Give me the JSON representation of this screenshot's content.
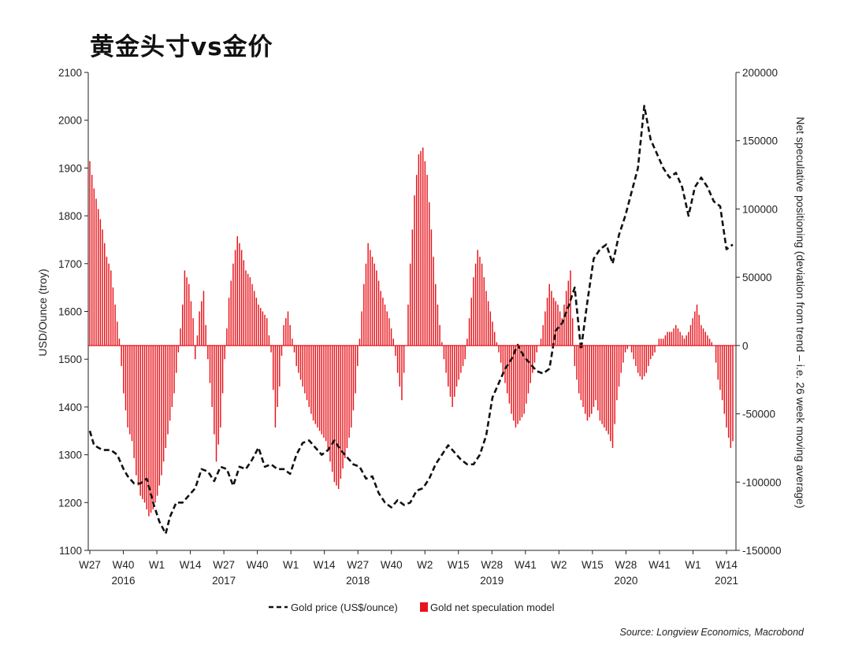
{
  "title": "黄金头寸vs金价",
  "source": "Source: Longview Economics, Macrobond",
  "chart_data": {
    "type": "bar+line",
    "title": "黄金头寸vs金价",
    "y_left": {
      "label": "USD/Ounce (troy)",
      "range": [
        1100,
        2100
      ],
      "ticks": [
        1100,
        1200,
        1300,
        1400,
        1500,
        1600,
        1700,
        1800,
        1900,
        2000,
        2100
      ]
    },
    "y_right": {
      "label": "Net speculative positioning (deviation from trend – i.e. 26 week moving average)",
      "range": [
        -150000,
        200000
      ],
      "ticks": [
        -150000,
        -100000,
        -50000,
        0,
        50000,
        100000,
        150000,
        200000
      ],
      "tick_labels": [
        "-150000",
        "-100000",
        "-50000",
        "0",
        "50000",
        "100000",
        "150000",
        "200000"
      ]
    },
    "x_axis": {
      "week_labels": [
        "W27",
        "W40",
        "W1",
        "W14",
        "W27",
        "W40",
        "W1",
        "W14",
        "W27",
        "W40",
        "W2",
        "W15",
        "W28",
        "W41",
        "W2",
        "W15",
        "W28",
        "W41",
        "W1",
        "W14"
      ],
      "year_labels": [
        {
          "text": "2016",
          "at_label": 1
        },
        {
          "text": "2017",
          "at_label": 4
        },
        {
          "text": "2018",
          "at_label": 8
        },
        {
          "text": "2019",
          "at_label": 12
        },
        {
          "text": "2020",
          "at_label": 16
        },
        {
          "text": "2021",
          "at_label": 19
        }
      ]
    },
    "series": [
      {
        "name": "Gold price (US$/ounce)",
        "type": "line",
        "axis": "left",
        "color": "#111111",
        "style": "dashed",
        "anchors": [
          [
            0,
            1350
          ],
          [
            2,
            1320
          ],
          [
            6,
            1310
          ],
          [
            10,
            1310
          ],
          [
            13,
            1300
          ],
          [
            16,
            1270
          ],
          [
            18,
            1255
          ],
          [
            21,
            1240
          ],
          [
            24,
            1240
          ],
          [
            27,
            1250
          ],
          [
            30,
            1200
          ],
          [
            33,
            1160
          ],
          [
            36,
            1135
          ],
          [
            38,
            1170
          ],
          [
            41,
            1200
          ],
          [
            44,
            1200
          ],
          [
            47,
            1215
          ],
          [
            50,
            1230
          ],
          [
            53,
            1270
          ],
          [
            56,
            1265
          ],
          [
            59,
            1245
          ],
          [
            62,
            1275
          ],
          [
            65,
            1270
          ],
          [
            68,
            1235
          ],
          [
            71,
            1275
          ],
          [
            74,
            1270
          ],
          [
            77,
            1290
          ],
          [
            80,
            1315
          ],
          [
            83,
            1275
          ],
          [
            86,
            1280
          ],
          [
            89,
            1270
          ],
          [
            92,
            1270
          ],
          [
            95,
            1260
          ],
          [
            98,
            1300
          ],
          [
            101,
            1325
          ],
          [
            104,
            1330
          ],
          [
            107,
            1315
          ],
          [
            110,
            1300
          ],
          [
            113,
            1310
          ],
          [
            116,
            1330
          ],
          [
            119,
            1310
          ],
          [
            122,
            1295
          ],
          [
            125,
            1280
          ],
          [
            128,
            1275
          ],
          [
            131,
            1250
          ],
          [
            134,
            1255
          ],
          [
            137,
            1220
          ],
          [
            140,
            1200
          ],
          [
            143,
            1190
          ],
          [
            146,
            1205
          ],
          [
            149,
            1195
          ],
          [
            152,
            1200
          ],
          [
            155,
            1225
          ],
          [
            158,
            1230
          ],
          [
            161,
            1250
          ],
          [
            164,
            1280
          ],
          [
            167,
            1300
          ],
          [
            170,
            1320
          ],
          [
            173,
            1305
          ],
          [
            176,
            1290
          ],
          [
            179,
            1280
          ],
          [
            182,
            1280
          ],
          [
            185,
            1300
          ],
          [
            188,
            1340
          ],
          [
            191,
            1420
          ],
          [
            194,
            1450
          ],
          [
            197,
            1480
          ],
          [
            200,
            1500
          ],
          [
            203,
            1530
          ],
          [
            206,
            1505
          ],
          [
            209,
            1490
          ],
          [
            212,
            1475
          ],
          [
            215,
            1470
          ],
          [
            218,
            1480
          ],
          [
            221,
            1560
          ],
          [
            224,
            1575
          ],
          [
            227,
            1610
          ],
          [
            230,
            1650
          ],
          [
            233,
            1520
          ],
          [
            236,
            1620
          ],
          [
            239,
            1710
          ],
          [
            242,
            1730
          ],
          [
            245,
            1740
          ],
          [
            248,
            1700
          ],
          [
            251,
            1760
          ],
          [
            254,
            1800
          ],
          [
            257,
            1850
          ],
          [
            260,
            1900
          ],
          [
            263,
            2030
          ],
          [
            266,
            1960
          ],
          [
            269,
            1930
          ],
          [
            272,
            1900
          ],
          [
            275,
            1880
          ],
          [
            278,
            1890
          ],
          [
            281,
            1860
          ],
          [
            284,
            1800
          ],
          [
            287,
            1860
          ],
          [
            290,
            1880
          ],
          [
            293,
            1860
          ],
          [
            296,
            1830
          ],
          [
            299,
            1820
          ],
          [
            302,
            1730
          ],
          [
            305,
            1740
          ]
        ]
      },
      {
        "name": "Gold net speculation model",
        "type": "bar",
        "axis": "right",
        "color": "#e8141b",
        "anchors": [
          [
            0,
            135000
          ],
          [
            2,
            115000
          ],
          [
            4,
            100000
          ],
          [
            6,
            85000
          ],
          [
            8,
            65000
          ],
          [
            10,
            55000
          ],
          [
            12,
            30000
          ],
          [
            14,
            5000
          ],
          [
            16,
            -35000
          ],
          [
            18,
            -60000
          ],
          [
            20,
            -70000
          ],
          [
            22,
            -95000
          ],
          [
            24,
            -110000
          ],
          [
            26,
            -115000
          ],
          [
            28,
            -125000
          ],
          [
            30,
            -120000
          ],
          [
            32,
            -110000
          ],
          [
            34,
            -95000
          ],
          [
            36,
            -75000
          ],
          [
            38,
            -55000
          ],
          [
            40,
            -35000
          ],
          [
            42,
            -5000
          ],
          [
            44,
            30000
          ],
          [
            45,
            55000
          ],
          [
            47,
            45000
          ],
          [
            49,
            20000
          ],
          [
            50,
            -10000
          ],
          [
            52,
            25000
          ],
          [
            54,
            40000
          ],
          [
            56,
            -10000
          ],
          [
            58,
            -45000
          ],
          [
            60,
            -85000
          ],
          [
            62,
            -60000
          ],
          [
            64,
            -10000
          ],
          [
            66,
            35000
          ],
          [
            68,
            60000
          ],
          [
            70,
            80000
          ],
          [
            72,
            70000
          ],
          [
            74,
            55000
          ],
          [
            76,
            50000
          ],
          [
            78,
            40000
          ],
          [
            80,
            30000
          ],
          [
            82,
            25000
          ],
          [
            84,
            20000
          ],
          [
            86,
            -5000
          ],
          [
            88,
            -60000
          ],
          [
            90,
            -30000
          ],
          [
            92,
            15000
          ],
          [
            94,
            25000
          ],
          [
            96,
            5000
          ],
          [
            98,
            -15000
          ],
          [
            100,
            -25000
          ],
          [
            102,
            -35000
          ],
          [
            104,
            -45000
          ],
          [
            106,
            -55000
          ],
          [
            108,
            -60000
          ],
          [
            110,
            -65000
          ],
          [
            112,
            -70000
          ],
          [
            114,
            -85000
          ],
          [
            116,
            -100000
          ],
          [
            118,
            -105000
          ],
          [
            120,
            -90000
          ],
          [
            122,
            -75000
          ],
          [
            124,
            -60000
          ],
          [
            126,
            -35000
          ],
          [
            128,
            5000
          ],
          [
            130,
            45000
          ],
          [
            132,
            75000
          ],
          [
            134,
            65000
          ],
          [
            136,
            55000
          ],
          [
            138,
            40000
          ],
          [
            140,
            30000
          ],
          [
            142,
            20000
          ],
          [
            144,
            5000
          ],
          [
            146,
            -20000
          ],
          [
            148,
            -40000
          ],
          [
            150,
            0
          ],
          [
            152,
            60000
          ],
          [
            154,
            110000
          ],
          [
            156,
            140000
          ],
          [
            158,
            145000
          ],
          [
            160,
            125000
          ],
          [
            162,
            85000
          ],
          [
            164,
            45000
          ],
          [
            166,
            15000
          ],
          [
            168,
            -10000
          ],
          [
            170,
            -30000
          ],
          [
            172,
            -45000
          ],
          [
            174,
            -30000
          ],
          [
            176,
            -20000
          ],
          [
            178,
            -10000
          ],
          [
            180,
            20000
          ],
          [
            182,
            50000
          ],
          [
            184,
            70000
          ],
          [
            186,
            60000
          ],
          [
            188,
            40000
          ],
          [
            190,
            25000
          ],
          [
            192,
            10000
          ],
          [
            194,
            -5000
          ],
          [
            196,
            -20000
          ],
          [
            198,
            -35000
          ],
          [
            200,
            -50000
          ],
          [
            202,
            -60000
          ],
          [
            204,
            -55000
          ],
          [
            206,
            -50000
          ],
          [
            208,
            -35000
          ],
          [
            210,
            -20000
          ],
          [
            212,
            -5000
          ],
          [
            214,
            5000
          ],
          [
            216,
            25000
          ],
          [
            218,
            45000
          ],
          [
            220,
            35000
          ],
          [
            222,
            30000
          ],
          [
            224,
            20000
          ],
          [
            226,
            40000
          ],
          [
            228,
            55000
          ],
          [
            230,
            -15000
          ],
          [
            232,
            -35000
          ],
          [
            234,
            -45000
          ],
          [
            236,
            -55000
          ],
          [
            238,
            -50000
          ],
          [
            240,
            -40000
          ],
          [
            242,
            -55000
          ],
          [
            244,
            -60000
          ],
          [
            246,
            -65000
          ],
          [
            248,
            -75000
          ],
          [
            250,
            -40000
          ],
          [
            252,
            -20000
          ],
          [
            254,
            -5000
          ],
          [
            256,
            0
          ],
          [
            258,
            -10000
          ],
          [
            260,
            -20000
          ],
          [
            262,
            -25000
          ],
          [
            264,
            -20000
          ],
          [
            266,
            -10000
          ],
          [
            268,
            -5000
          ],
          [
            270,
            5000
          ],
          [
            272,
            5000
          ],
          [
            274,
            10000
          ],
          [
            276,
            10000
          ],
          [
            278,
            15000
          ],
          [
            280,
            10000
          ],
          [
            282,
            5000
          ],
          [
            284,
            10000
          ],
          [
            286,
            20000
          ],
          [
            288,
            30000
          ],
          [
            290,
            15000
          ],
          [
            292,
            10000
          ],
          [
            294,
            5000
          ],
          [
            296,
            0
          ],
          [
            298,
            -25000
          ],
          [
            300,
            -40000
          ],
          [
            302,
            -60000
          ],
          [
            304,
            -75000
          ],
          [
            305,
            -70000
          ]
        ]
      }
    ],
    "legend": {
      "placement": "bottom-center"
    },
    "grid": false
  }
}
